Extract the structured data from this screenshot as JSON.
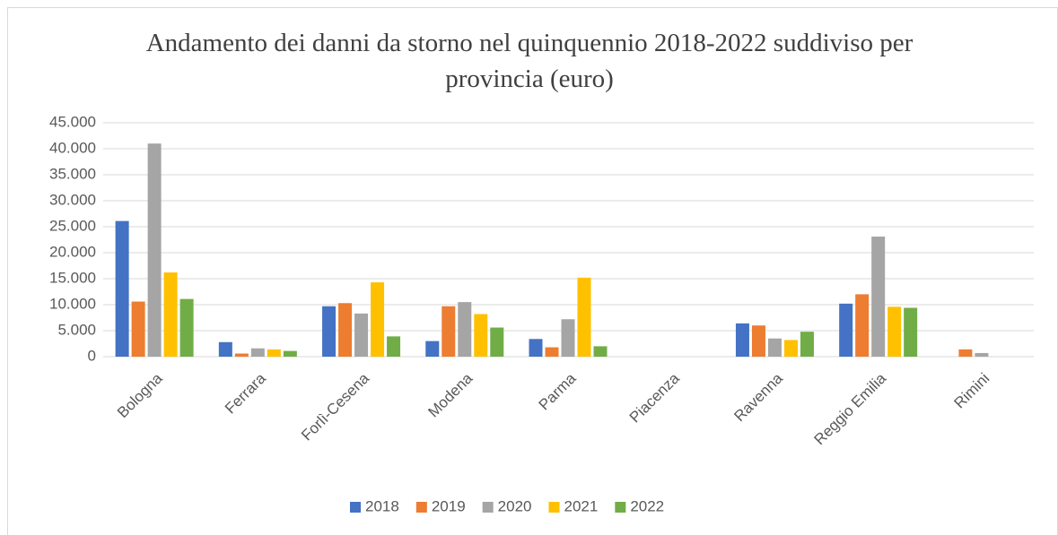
{
  "chart_data": {
    "type": "bar",
    "title": "Andamento dei danni da storno nel quinquennio 2018-2022 suddiviso per provincia (euro)",
    "categories": [
      "Bologna",
      "Ferrara",
      "Forlì-Cesena",
      "Modena",
      "Parma",
      "Piacenza",
      "Ravenna",
      "Reggio Emilia",
      "Rimini"
    ],
    "series": [
      {
        "name": "2018",
        "color": "#4472c4",
        "values": [
          26100,
          2800,
          9700,
          3000,
          3400,
          0,
          6400,
          10200,
          0
        ]
      },
      {
        "name": "2019",
        "color": "#ed7d31",
        "values": [
          10600,
          600,
          10300,
          9700,
          1800,
          0,
          6000,
          12000,
          1400
        ]
      },
      {
        "name": "2020",
        "color": "#a5a5a5",
        "values": [
          41000,
          1600,
          8300,
          10500,
          7200,
          0,
          3500,
          23100,
          700
        ]
      },
      {
        "name": "2021",
        "color": "#ffc000",
        "values": [
          16200,
          1400,
          14300,
          8200,
          15200,
          0,
          3200,
          9600,
          0
        ]
      },
      {
        "name": "2022",
        "color": "#70ad47",
        "values": [
          11100,
          1100,
          3900,
          5600,
          2000,
          0,
          4800,
          9400,
          0
        ]
      }
    ],
    "ylim": [
      0,
      45000
    ],
    "yticks": [
      0,
      {
        "value": 5000,
        "label": "5.000"
      },
      {
        "value": 10000,
        "label": "10.000"
      },
      {
        "value": 15000,
        "label": "15.000"
      },
      {
        "value": 20000,
        "label": "20.000"
      },
      {
        "value": 25000,
        "label": "25.000"
      },
      {
        "value": 30000,
        "label": "30.000"
      },
      {
        "value": 35000,
        "label": "35.000"
      },
      {
        "value": 40000,
        "label": "40.000"
      },
      {
        "value": 45000,
        "label": "45.000"
      }
    ],
    "grid": true,
    "legend": "bottom"
  }
}
